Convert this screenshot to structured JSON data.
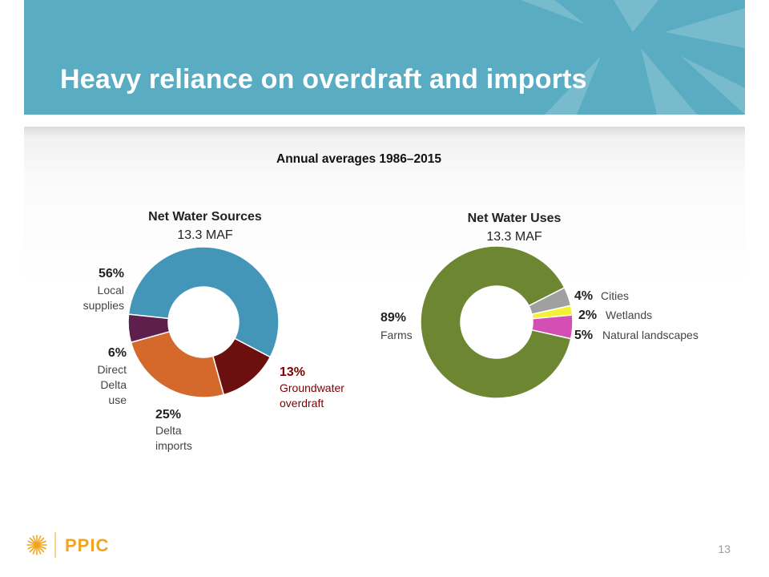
{
  "slide": {
    "title": "Heavy reliance on overdraft and imports",
    "subtitle": "Annual averages 1986–2015",
    "page_number": "13",
    "logo_text": "PPIC",
    "banner_color": "#5aacc3",
    "logo_color": "#f2a51c"
  },
  "chart_data": [
    {
      "type": "pie",
      "style": "donut",
      "title": "Net Water Sources",
      "subtitle": "13.3 MAF",
      "slices": [
        {
          "label_pct": "56%",
          "label_lines": [
            "Local",
            "supplies"
          ],
          "value": 56,
          "color": "#4496b8"
        },
        {
          "label_pct": "13%",
          "label_lines": [
            "Groundwater",
            "overdraft"
          ],
          "value": 13,
          "color": "#6b0f0f",
          "pct_color": "#7a0000"
        },
        {
          "label_pct": "25%",
          "label_lines": [
            "Delta",
            "imports"
          ],
          "value": 25,
          "color": "#d4692b"
        },
        {
          "label_pct": "6%",
          "label_lines": [
            "Direct",
            "Delta",
            "use"
          ],
          "value": 6,
          "color": "#5e1f4c"
        }
      ]
    },
    {
      "type": "pie",
      "style": "donut",
      "title": "Net Water Uses",
      "subtitle": "13.3 MAF",
      "slices": [
        {
          "label_pct": "4%",
          "label_text": "Cities",
          "value": 4,
          "color": "#a0a0a0"
        },
        {
          "label_pct": "2%",
          "label_text": "Wetlands",
          "value": 2,
          "color": "#f4f134"
        },
        {
          "label_pct": "5%",
          "label_text": "Natural landscapes",
          "value": 5,
          "color": "#d44fb4"
        },
        {
          "label_pct": "89%",
          "label_text": "Farms",
          "value": 89,
          "color": "#6d8632"
        }
      ]
    }
  ]
}
